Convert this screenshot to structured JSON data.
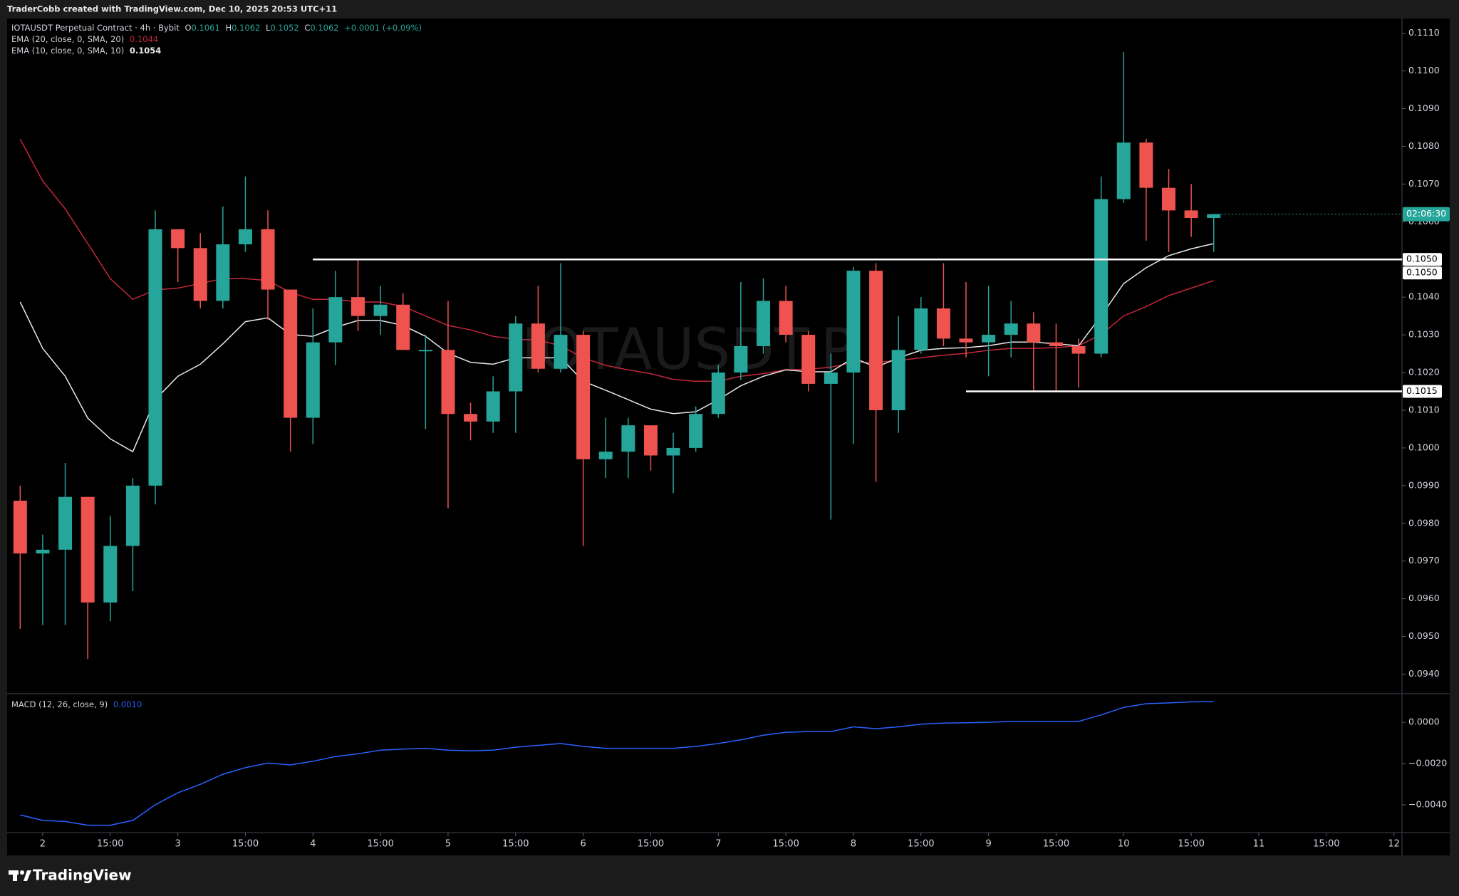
{
  "header": {
    "attribution": "TraderCobb created with TradingView.com, Dec 10, 2025 20:53 UTC+11",
    "logo": "TradingView"
  },
  "chart_data": [
    {
      "type": "candlestick",
      "title": "IOTAUSDT Perpetual Contract · 4h · Bybit",
      "ohlc_labels": [
        "O",
        "H",
        "L",
        "C"
      ],
      "change": "+0.0001 (+0.09%)",
      "watermark": "IOTAUSDT.P",
      "countdown": "02:06:30",
      "up_color": "#26a69a",
      "down_color": "#ef5350",
      "open": [
        0.0986,
        0.0972,
        0.0973,
        0.0987,
        0.0959,
        0.0974,
        0.099,
        0.1058,
        0.1053,
        0.1039,
        0.1054,
        0.1058,
        0.1042,
        0.1008,
        0.1028,
        0.104,
        0.1035,
        0.1038,
        0.1026,
        0.1026,
        0.1009,
        0.1007,
        0.1015,
        0.1033,
        0.1021,
        0.103,
        0.0997,
        0.0999,
        0.1006,
        0.0998,
        0.1,
        0.1009,
        0.102,
        0.1027,
        0.1039,
        0.103,
        0.1017,
        0.102,
        0.1047,
        0.101,
        0.1026,
        0.1037,
        0.1029,
        0.1028,
        0.103,
        0.1033,
        0.1028,
        0.1027,
        0.1025,
        0.1066,
        0.1081,
        0.1069,
        0.1063,
        0.1061
      ],
      "high": [
        0.099,
        0.0977,
        0.0996,
        0.0987,
        0.0982,
        0.0992,
        0.1063,
        0.1058,
        0.1057,
        0.1064,
        0.1072,
        0.1063,
        0.1042,
        0.1037,
        0.1047,
        0.105,
        0.1043,
        0.1041,
        0.103,
        0.1039,
        0.1012,
        0.1019,
        0.1035,
        0.1043,
        0.1049,
        0.1031,
        0.1008,
        0.1008,
        0.1006,
        0.1004,
        0.1011,
        0.1022,
        0.1044,
        0.1045,
        0.1043,
        0.1031,
        0.1025,
        0.1048,
        0.1049,
        0.1035,
        0.104,
        0.1049,
        0.1044,
        0.1043,
        0.1039,
        0.1036,
        0.1033,
        0.1029,
        0.1072,
        0.1105,
        0.1082,
        0.1074,
        0.107,
        0.1062
      ],
      "low": [
        0.0952,
        0.0953,
        0.0953,
        0.0944,
        0.0954,
        0.0962,
        0.0985,
        0.1044,
        0.1037,
        0.1037,
        0.1052,
        0.1034,
        0.0999,
        0.1001,
        0.1022,
        0.1031,
        0.103,
        0.1026,
        0.1005,
        0.0984,
        0.1002,
        0.1004,
        0.1004,
        0.102,
        0.102,
        0.0974,
        0.0992,
        0.0992,
        0.0994,
        0.0988,
        0.0999,
        0.1008,
        0.1018,
        0.1025,
        0.1028,
        0.1015,
        0.0981,
        0.1001,
        0.0991,
        0.1004,
        0.1025,
        0.1027,
        0.1024,
        0.1019,
        0.1024,
        0.1015,
        0.1015,
        0.1016,
        0.1024,
        0.1065,
        0.1055,
        0.1052,
        0.1056,
        0.1052
      ],
      "close": [
        0.0972,
        0.0973,
        0.0987,
        0.0959,
        0.0974,
        0.099,
        0.1058,
        0.1053,
        0.1039,
        0.1054,
        0.1058,
        0.1042,
        0.1008,
        0.1028,
        0.104,
        0.1035,
        0.1038,
        0.1026,
        0.1026,
        0.1009,
        0.1007,
        0.1015,
        0.1033,
        0.1021,
        0.103,
        0.0997,
        0.0999,
        0.1006,
        0.0998,
        0.1,
        0.1009,
        0.102,
        0.1027,
        0.1039,
        0.103,
        0.1017,
        0.102,
        0.1047,
        0.101,
        0.1026,
        0.1037,
        0.1029,
        0.1028,
        0.103,
        0.1033,
        0.1028,
        0.1027,
        0.1025,
        0.1066,
        0.1081,
        0.1069,
        0.1063,
        0.1061,
        0.1062
      ],
      "series": [
        {
          "name": "EMA (20, close, 0, SMA, 20)",
          "color": "#c4283a",
          "value_label": "0.1044",
          "values": [
            0.10819,
            0.10708,
            0.10634,
            0.10542,
            0.10449,
            0.10394,
            0.10419,
            0.10424,
            0.10436,
            0.10449,
            0.10449,
            0.10444,
            0.10412,
            0.10394,
            0.10394,
            0.10387,
            0.10387,
            0.10375,
            0.1035,
            0.10325,
            0.10313,
            0.10296,
            0.10288,
            0.10286,
            0.10271,
            0.10239,
            0.10219,
            0.10207,
            0.10197,
            0.10182,
            0.10177,
            0.10177,
            0.1019,
            0.10197,
            0.10207,
            0.10209,
            0.10214,
            0.10227,
            0.10227,
            0.10232,
            0.10239,
            0.10246,
            0.10251,
            0.10259,
            0.10264,
            0.10264,
            0.10266,
            0.10271,
            0.10301,
            0.1035,
            0.10375,
            0.10404,
            0.10424,
            0.10444
          ]
        },
        {
          "name": "EMA (10, close, 0, SMA, 10)",
          "color": "#e8e8e8",
          "value_label": "0.1054",
          "values": [
            0.10387,
            0.10264,
            0.1019,
            0.10079,
            0.10024,
            0.0999,
            0.10128,
            0.1019,
            0.10222,
            0.10276,
            0.10335,
            0.10345,
            0.10301,
            0.10296,
            0.1032,
            0.10338,
            0.10338,
            0.10325,
            0.10296,
            0.10251,
            0.10227,
            0.10222,
            0.10239,
            0.10239,
            0.10239,
            0.10177,
            0.10153,
            0.10128,
            0.10103,
            0.10091,
            0.10096,
            0.10128,
            0.10165,
            0.1019,
            0.10207,
            0.10202,
            0.10202,
            0.10239,
            0.10214,
            0.10239,
            0.10259,
            0.10264,
            0.10266,
            0.10271,
            0.10281,
            0.10281,
            0.10276,
            0.10271,
            0.1035,
            0.10436,
            0.10478,
            0.1051,
            0.10528,
            0.10542
          ]
        }
      ],
      "hlines": [
        {
          "value": 0.105,
          "label": "0.1050",
          "x_start": 13
        },
        {
          "value": 0.105,
          "label": "0.1050",
          "x_start": 13
        },
        {
          "value": 0.1015,
          "label": "0.1015",
          "x_start": 42
        }
      ],
      "xlim": [
        -0.58,
        61.36
      ],
      "ylim": [
        0.09348,
        0.11139
      ],
      "yticks": [
        {
          "value": 0.111,
          "label": "0.1110"
        },
        {
          "value": 0.11,
          "label": "0.1100"
        },
        {
          "value": 0.109,
          "label": "0.1090"
        },
        {
          "value": 0.108,
          "label": "0.1080"
        },
        {
          "value": 0.107,
          "label": "0.1070"
        },
        {
          "value": 0.106,
          "label": "0.1060"
        },
        {
          "value": 0.105,
          "label": "0.1050"
        },
        {
          "value": 0.104,
          "label": "0.1040"
        },
        {
          "value": 0.103,
          "label": "0.1030"
        },
        {
          "value": 0.102,
          "label": "0.1020"
        },
        {
          "value": 0.101,
          "label": "0.1010"
        },
        {
          "value": 0.1,
          "label": "0.1000"
        },
        {
          "value": 0.099,
          "label": "0.0990"
        },
        {
          "value": 0.098,
          "label": "0.0980"
        },
        {
          "value": 0.097,
          "label": "0.0970"
        },
        {
          "value": 0.096,
          "label": "0.0960"
        },
        {
          "value": 0.095,
          "label": "0.0950"
        },
        {
          "value": 0.094,
          "label": "0.0940"
        }
      ]
    },
    {
      "type": "line",
      "series": [
        {
          "name": "MACD (12, 26, close, 9)",
          "color": "#2962ff",
          "value_label": "0.0010",
          "values": [
            -0.00449,
            -0.00476,
            -0.00481,
            -0.00499,
            -0.00499,
            -0.00476,
            -0.004,
            -0.00342,
            -0.00301,
            -0.00252,
            -0.0022,
            -0.00198,
            -0.00207,
            -0.00189,
            -0.00166,
            -0.00153,
            -0.00135,
            -0.0013,
            -0.00126,
            -0.00135,
            -0.00139,
            -0.00135,
            -0.00121,
            -0.00112,
            -0.00103,
            -0.00117,
            -0.00126,
            -0.00126,
            -0.00126,
            -0.00126,
            -0.00117,
            -0.00103,
            -0.00085,
            -0.00063,
            -0.00049,
            -0.00045,
            -0.00045,
            -0.00022,
            -0.00031,
            -0.00022,
            -9e-05,
            -4e-05,
            -2e-05,
            0.0,
            4e-05,
            4e-05,
            4e-05,
            4e-05,
            0.00036,
            0.00072,
            0.0009,
            0.00094,
            0.00099,
            0.001
          ]
        }
      ],
      "xlim": [
        -0.58,
        61.36
      ],
      "ylim": [
        -0.00535,
        0.00135
      ],
      "yticks": [
        {
          "value": 0,
          "label": "0.0000"
        },
        {
          "value": -0.002,
          "label": "−0.0020"
        },
        {
          "value": -0.004,
          "label": "−0.0040"
        }
      ],
      "xticks": [
        {
          "value": 1,
          "label": "2"
        },
        {
          "value": 4,
          "label": "15:00"
        },
        {
          "value": 7,
          "label": "3"
        },
        {
          "value": 10,
          "label": "15:00"
        },
        {
          "value": 13,
          "label": "4"
        },
        {
          "value": 16,
          "label": "15:00"
        },
        {
          "value": 19,
          "label": "5"
        },
        {
          "value": 22,
          "label": "15:00"
        },
        {
          "value": 25,
          "label": "6"
        },
        {
          "value": 28,
          "label": "15:00"
        },
        {
          "value": 31,
          "label": "7"
        },
        {
          "value": 34,
          "label": "15:00"
        },
        {
          "value": 37,
          "label": "8"
        },
        {
          "value": 40,
          "label": "15:00"
        },
        {
          "value": 43,
          "label": "9"
        },
        {
          "value": 46,
          "label": "15:00"
        },
        {
          "value": 49,
          "label": "10"
        },
        {
          "value": 52,
          "label": "15:00"
        },
        {
          "value": 55,
          "label": "11"
        },
        {
          "value": 58,
          "label": "15:00"
        },
        {
          "value": 61,
          "label": "12"
        }
      ]
    }
  ]
}
